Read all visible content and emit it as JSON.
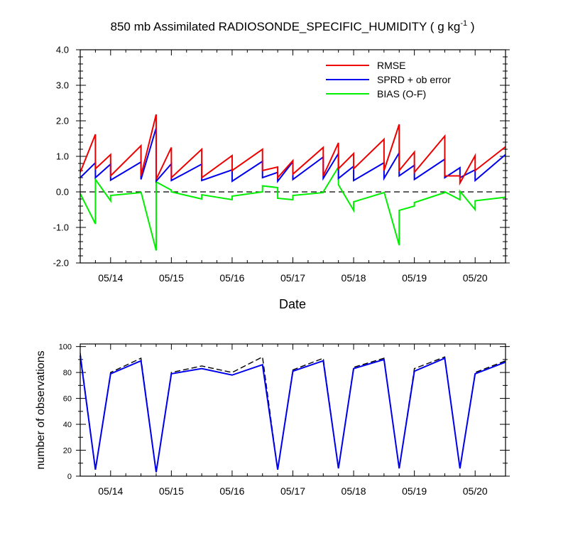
{
  "figure": {
    "title_main": "850 mb Assimilated RADIOSONDE_SPECIFIC_HUMIDITY ( g kg",
    "title_sup": "-1",
    "title_close": " )"
  },
  "chart_data": [
    {
      "type": "line",
      "title": "850 mb Assimilated RADIOSONDE_SPECIFIC_HUMIDITY ( g kg-1 )",
      "xlabel": "Date",
      "ylabel": "",
      "ylim": [
        -2.0,
        4.0
      ],
      "xlim": [
        "05/13 12:00",
        "05/20 12:00"
      ],
      "yticks": [
        "-2.0",
        "-1.0",
        "0.0",
        "1.0",
        "2.0",
        "3.0",
        "4.0"
      ],
      "xticks": [
        "05/14",
        "05/15",
        "05/16",
        "05/17",
        "05/18",
        "05/19",
        "05/20"
      ],
      "grid": false,
      "reference_line": {
        "y": 0.0,
        "style": "dashed",
        "color": "#000000"
      },
      "legend": {
        "position": "top-right"
      },
      "series": [
        {
          "name": "RMSE",
          "color": "#ee0000",
          "segments": [
            [
              [
                "05/13 12:00",
                0.55
              ],
              [
                "05/13 18:00",
                1.62
              ]
            ],
            [
              [
                "05/13 18:00",
                0.65
              ],
              [
                "05/14 00:00",
                1.05
              ]
            ],
            [
              [
                "05/14 00:00",
                0.45
              ],
              [
                "05/14 12:00",
                1.3
              ]
            ],
            [
              [
                "05/14 12:00",
                0.45
              ],
              [
                "05/14 18:00",
                2.18
              ]
            ],
            [
              [
                "05/14 18:00",
                0.35
              ],
              [
                "05/15 00:00",
                1.25
              ]
            ],
            [
              [
                "05/15 00:00",
                0.4
              ],
              [
                "05/15 12:00",
                1.2
              ]
            ],
            [
              [
                "05/15 12:00",
                0.4
              ],
              [
                "05/16 00:00",
                1.02
              ]
            ],
            [
              [
                "05/16 00:00",
                0.6
              ],
              [
                "05/16 12:00",
                1.2
              ]
            ],
            [
              [
                "05/16 12:00",
                0.6
              ],
              [
                "05/16 18:00",
                0.7
              ]
            ],
            [
              [
                "05/16 18:00",
                0.4
              ],
              [
                "05/17 00:00",
                0.88
              ]
            ],
            [
              [
                "05/17 00:00",
                0.5
              ],
              [
                "05/17 12:00",
                1.25
              ]
            ],
            [
              [
                "05/17 12:00",
                0.45
              ],
              [
                "05/17 18:00",
                1.38
              ]
            ],
            [
              [
                "05/17 18:00",
                0.65
              ],
              [
                "05/18 00:00",
                1.08
              ]
            ],
            [
              [
                "05/18 00:00",
                0.65
              ],
              [
                "05/18 12:00",
                1.48
              ]
            ],
            [
              [
                "05/18 12:00",
                0.6
              ],
              [
                "05/18 18:00",
                1.9
              ]
            ],
            [
              [
                "05/18 18:00",
                0.6
              ],
              [
                "05/19 00:00",
                1.12
              ]
            ],
            [
              [
                "05/19 00:00",
                0.55
              ],
              [
                "05/19 12:00",
                1.57
              ]
            ],
            [
              [
                "05/19 12:00",
                0.45
              ],
              [
                "05/19 18:00",
                0.45
              ]
            ],
            [
              [
                "05/19 18:00",
                0.25
              ],
              [
                "05/20 00:00",
                1.02
              ]
            ],
            [
              [
                "05/20 00:00",
                0.6
              ],
              [
                "05/20 12:00",
                1.27
              ]
            ]
          ]
        },
        {
          "name": "SPRD + ob error",
          "color": "#0000ee",
          "segments": [
            [
              [
                "05/13 12:00",
                0.4
              ],
              [
                "05/13 18:00",
                0.82
              ]
            ],
            [
              [
                "05/13 18:00",
                0.4
              ],
              [
                "05/14 00:00",
                0.78
              ]
            ],
            [
              [
                "05/14 00:00",
                0.33
              ],
              [
                "05/14 12:00",
                0.84
              ]
            ],
            [
              [
                "05/14 12:00",
                0.35
              ],
              [
                "05/14 18:00",
                1.8
              ]
            ],
            [
              [
                "05/14 18:00",
                0.3
              ],
              [
                "05/15 00:00",
                0.79
              ]
            ],
            [
              [
                "05/15 00:00",
                0.32
              ],
              [
                "05/15 12:00",
                0.78
              ]
            ],
            [
              [
                "05/15 12:00",
                0.32
              ],
              [
                "05/16 00:00",
                0.62
              ]
            ],
            [
              [
                "05/16 00:00",
                0.3
              ],
              [
                "05/16 12:00",
                0.86
              ]
            ],
            [
              [
                "05/16 12:00",
                0.4
              ],
              [
                "05/16 18:00",
                0.55
              ]
            ],
            [
              [
                "05/16 18:00",
                0.3
              ],
              [
                "05/17 00:00",
                0.85
              ]
            ],
            [
              [
                "05/17 00:00",
                0.35
              ],
              [
                "05/17 12:00",
                0.98
              ]
            ],
            [
              [
                "05/17 12:00",
                0.38
              ],
              [
                "05/17 18:00",
                1.08
              ]
            ],
            [
              [
                "05/17 18:00",
                0.38
              ],
              [
                "05/18 00:00",
                0.72
              ]
            ],
            [
              [
                "05/18 00:00",
                0.32
              ],
              [
                "05/18 12:00",
                0.82
              ]
            ],
            [
              [
                "05/18 12:00",
                0.38
              ],
              [
                "05/18 18:00",
                1.1
              ]
            ],
            [
              [
                "05/18 18:00",
                0.45
              ],
              [
                "05/19 00:00",
                0.75
              ]
            ],
            [
              [
                "05/19 00:00",
                0.35
              ],
              [
                "05/19 12:00",
                0.92
              ]
            ],
            [
              [
                "05/19 12:00",
                0.4
              ],
              [
                "05/19 18:00",
                0.68
              ]
            ],
            [
              [
                "05/19 18:00",
                0.4
              ],
              [
                "05/20 00:00",
                0.62
              ]
            ],
            [
              [
                "05/20 00:00",
                0.32
              ],
              [
                "05/20 12:00",
                1.05
              ]
            ]
          ]
        },
        {
          "name": "BIAS (O-F)",
          "color": "#00ee00",
          "segments": [
            [
              [
                "05/13 12:00",
                -0.05
              ],
              [
                "05/13 18:00",
                -0.9
              ]
            ],
            [
              [
                "05/13 18:00",
                0.35
              ],
              [
                "05/14 00:00",
                -0.25
              ]
            ],
            [
              [
                "05/14 00:00",
                -0.1
              ],
              [
                "05/14 12:00",
                -0.02
              ]
            ],
            [
              [
                "05/14 12:00",
                0.0
              ],
              [
                "05/14 18:00",
                -1.65
              ]
            ],
            [
              [
                "05/14 18:00",
                0.28
              ],
              [
                "05/15 00:00",
                0.05
              ]
            ],
            [
              [
                "05/15 00:00",
                0.0
              ],
              [
                "05/15 12:00",
                -0.2
              ]
            ],
            [
              [
                "05/15 12:00",
                -0.08
              ],
              [
                "05/16 00:00",
                -0.22
              ]
            ],
            [
              [
                "05/16 00:00",
                -0.12
              ],
              [
                "05/16 12:00",
                0.0
              ]
            ],
            [
              [
                "05/16 12:00",
                0.17
              ],
              [
                "05/16 18:00",
                0.12
              ]
            ],
            [
              [
                "05/16 18:00",
                -0.18
              ],
              [
                "05/17 00:00",
                -0.22
              ]
            ],
            [
              [
                "05/17 00:00",
                -0.1
              ],
              [
                "05/17 12:00",
                -0.02
              ]
            ],
            [
              [
                "05/17 12:00",
                0.0
              ],
              [
                "05/17 18:00",
                0.7
              ]
            ],
            [
              [
                "05/17 18:00",
                0.2
              ],
              [
                "05/18 00:00",
                -0.52
              ]
            ],
            [
              [
                "05/18 00:00",
                -0.28
              ],
              [
                "05/18 12:00",
                -0.02
              ]
            ],
            [
              [
                "05/18 12:00",
                0.0
              ],
              [
                "05/18 18:00",
                -1.5
              ]
            ],
            [
              [
                "05/18 18:00",
                -0.52
              ],
              [
                "05/19 00:00",
                -0.4
              ]
            ],
            [
              [
                "05/19 00:00",
                -0.3
              ],
              [
                "05/19 12:00",
                -0.02
              ]
            ],
            [
              [
                "05/19 12:00",
                0.0
              ],
              [
                "05/19 18:00",
                -0.22
              ]
            ],
            [
              [
                "05/19 18:00",
                0.02
              ],
              [
                "05/20 00:00",
                -0.5
              ]
            ],
            [
              [
                "05/20 00:00",
                -0.25
              ],
              [
                "05/20 12:00",
                -0.15
              ]
            ]
          ]
        }
      ]
    },
    {
      "type": "line",
      "title": "",
      "xlabel": "",
      "ylabel": "number of observations",
      "ylim": [
        0,
        102
      ],
      "xlim": [
        "05/13 12:00",
        "05/20 12:00"
      ],
      "yticks": [
        "0",
        "20",
        "40",
        "60",
        "80",
        "100"
      ],
      "xticks": [
        "05/14",
        "05/15",
        "05/16",
        "05/17",
        "05/18",
        "05/19",
        "05/20"
      ],
      "grid": false,
      "x": [
        "05/13 12:00",
        "05/13 18:00",
        "05/14 00:00",
        "05/14 12:00",
        "05/14 18:00",
        "05/15 00:00",
        "05/15 12:00",
        "05/16 00:00",
        "05/16 12:00",
        "05/16 18:00",
        "05/17 00:00",
        "05/17 12:00",
        "05/17 18:00",
        "05/18 00:00",
        "05/18 12:00",
        "05/18 18:00",
        "05/19 00:00",
        "05/19 12:00",
        "05/19 18:00",
        "05/20 00:00",
        "05/20 12:00"
      ],
      "series": [
        {
          "name": "",
          "style": "dashed",
          "color": "#000000",
          "values": [
            95,
            5,
            80,
            91,
            3,
            80,
            85,
            80,
            92,
            5,
            82,
            91,
            6,
            84,
            91,
            6,
            83,
            92,
            6,
            80,
            89
          ]
        },
        {
          "name": "",
          "style": "solid",
          "color": "#0000ee",
          "values": [
            93,
            5,
            79,
            89,
            3,
            79,
            83,
            78,
            86,
            5,
            81,
            89,
            6,
            83,
            90,
            6,
            81,
            91,
            6,
            79,
            88
          ]
        }
      ]
    }
  ]
}
